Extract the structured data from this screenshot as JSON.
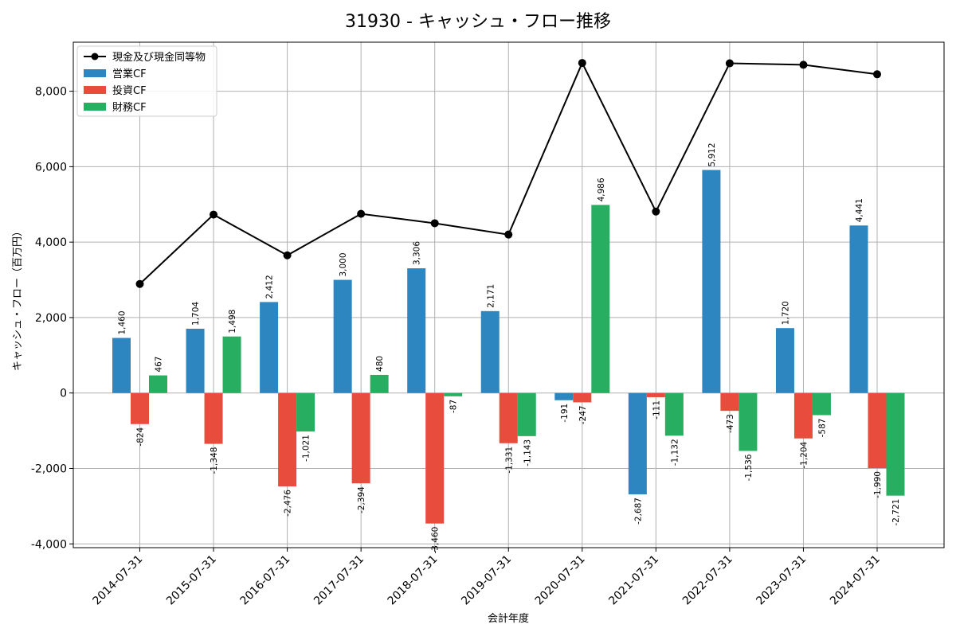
{
  "chart_data": {
    "type": "bar",
    "title": "31930 - キャッシュ・フロー推移",
    "xlabel": "会計年度",
    "ylabel": "キャッシュ・フロー（百万円）",
    "ylim": [
      -4100,
      9300
    ],
    "yticks": [
      -4000,
      -2000,
      0,
      2000,
      4000,
      6000,
      8000
    ],
    "ytick_labels": [
      "-4,000",
      "-2,000",
      "0",
      "2,000",
      "4,000",
      "6,000",
      "8,000"
    ],
    "grid": true,
    "legend_position": "top-left",
    "categories": [
      "2014-07-31",
      "2015-07-31",
      "2016-07-31",
      "2017-07-31",
      "2018-07-31",
      "2019-07-31",
      "2020-07-31",
      "2021-07-31",
      "2022-07-31",
      "2023-07-31",
      "2024-07-31"
    ],
    "series": [
      {
        "name": "営業CF",
        "kind": "bar",
        "color": "#2e86c1",
        "values": [
          1460,
          1704,
          2412,
          3000,
          3306,
          2171,
          -191,
          -2687,
          5912,
          1720,
          4441
        ],
        "labels": [
          "1,460",
          "1,704",
          "2,412",
          "3,000",
          "3,306",
          "2,171",
          "-191",
          "-2,687",
          "5,912",
          "1,720",
          "4,441"
        ]
      },
      {
        "name": "投資CF",
        "kind": "bar",
        "color": "#e74c3c",
        "values": [
          -824,
          -1348,
          -2476,
          -2394,
          -3460,
          -1331,
          -247,
          -111,
          -473,
          -1204,
          -1990
        ],
        "labels": [
          "-824",
          "-1,348",
          "-2,476",
          "-2,394",
          "-3,460",
          "-1,331",
          "-247",
          "-111",
          "-473",
          "-1,204",
          "-1,990"
        ]
      },
      {
        "name": "財務CF",
        "kind": "bar",
        "color": "#27ae60",
        "values": [
          467,
          1498,
          -1021,
          480,
          -87,
          -1143,
          4986,
          -1132,
          -1536,
          -587,
          -2721
        ],
        "labels": [
          "467",
          "1,498",
          "-1,021",
          "480",
          "-87",
          "-1,143",
          "4,986",
          "-1,132",
          "-1,536",
          "-587",
          "-2,721"
        ]
      },
      {
        "name": "現金及び現金同等物",
        "kind": "line",
        "color": "#000000",
        "values": [
          2890,
          4730,
          3650,
          4750,
          4500,
          4200,
          8750,
          4810,
          8740,
          8700,
          8450
        ]
      }
    ]
  }
}
